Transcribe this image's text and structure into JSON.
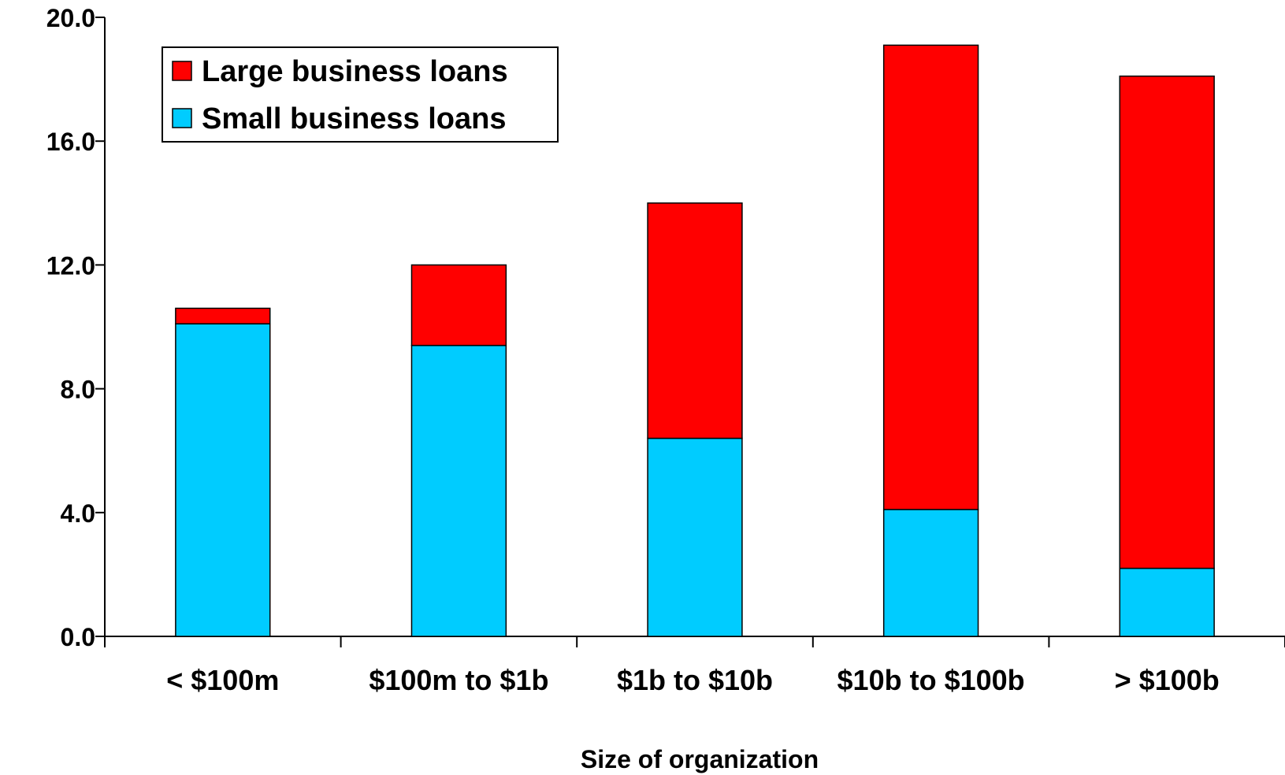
{
  "chart_data": {
    "type": "bar",
    "stacked": true,
    "title": "",
    "xlabel": "Size of organization",
    "ylabel": "",
    "ylim": [
      0,
      20
    ],
    "yticks": [
      "0.0",
      "4.0",
      "8.0",
      "12.0",
      "16.0",
      "20.0"
    ],
    "categories": [
      "< $100m",
      "$100m to $1b",
      "$1b to $10b",
      "$10b to $100b",
      "> $100b"
    ],
    "series": [
      {
        "name": "Small business loans",
        "color": "#00CCFF",
        "values": [
          10.1,
          9.4,
          6.4,
          4.1,
          2.2
        ]
      },
      {
        "name": "Large business loans",
        "color": "#FF0000",
        "values": [
          0.5,
          2.6,
          7.6,
          15.0,
          15.9
        ]
      }
    ],
    "legend": {
      "position": "top-left",
      "entries": [
        "Large business loans",
        "Small business loans"
      ]
    },
    "grid": false
  }
}
